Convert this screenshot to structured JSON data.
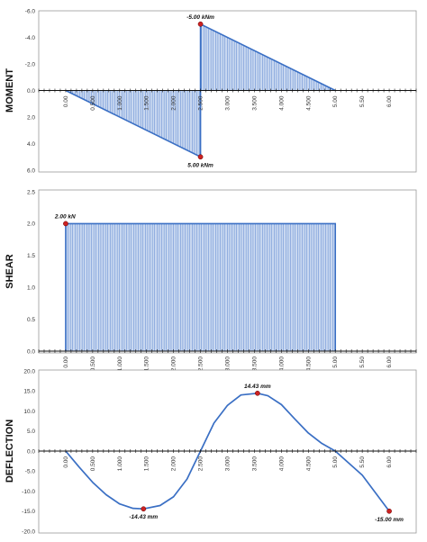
{
  "colors": {
    "series": "#3a6fc4",
    "fill": "#c9d8f0",
    "hatch": "#5b86cf",
    "marker": "#cc2222",
    "border": "#9a9a9a",
    "axis": "#111111"
  },
  "chart_data": [
    {
      "id": "moment",
      "type": "area",
      "ylabel": "MOMENT",
      "ylim": [
        6.0,
        -6.0
      ],
      "y_inverted": true,
      "yticks": [
        "-6.0",
        "-4.0",
        "-2.0",
        "0.0",
        "2.0",
        "4.0",
        "6.0"
      ],
      "ytick_values": [
        -6,
        -4,
        -2,
        0,
        2,
        4,
        6
      ],
      "xlim": [
        -0.5,
        6.5
      ],
      "xticks": [
        "0.00",
        "0.500",
        "1.000",
        "1.500",
        "2.000",
        "2.500",
        "3.000",
        "3.500",
        "4.000",
        "4.500",
        "5.00",
        "5.50",
        "6.00"
      ],
      "xtick_values": [
        0,
        0.5,
        1,
        1.5,
        2,
        2.5,
        3,
        3.5,
        4,
        4.5,
        5,
        5.5,
        6
      ],
      "points": [
        [
          0,
          0
        ],
        [
          2.5,
          5.0
        ],
        [
          2.5,
          -5.0
        ],
        [
          5.0,
          0
        ]
      ],
      "fill_range": [
        0,
        5
      ],
      "annotations": [
        {
          "x": 2.5,
          "y": -5.0,
          "text": "-5.00 kNm",
          "pos": "above"
        },
        {
          "x": 2.5,
          "y": 5.0,
          "text": "5.00 kNm",
          "pos": "below"
        }
      ],
      "grid": false
    },
    {
      "id": "shear",
      "type": "area",
      "ylabel": "SHEAR",
      "ylim": [
        0.0,
        2.5
      ],
      "yticks": [
        "0.0",
        "0.5",
        "1.0",
        "1.5",
        "2.0",
        "2.5"
      ],
      "ytick_values": [
        0,
        0.5,
        1.0,
        1.5,
        2.0,
        2.5
      ],
      "xlim": [
        -0.5,
        6.5
      ],
      "xticks": [
        "0.00",
        "0.500",
        "1.000",
        "1.500",
        "2.000",
        "2.500",
        "3.000",
        "3.500",
        "4.000",
        "4.500",
        "5.00",
        "5.50",
        "6.00"
      ],
      "xtick_values": [
        0,
        0.5,
        1,
        1.5,
        2,
        2.5,
        3,
        3.5,
        4,
        4.5,
        5,
        5.5,
        6
      ],
      "points": [
        [
          0,
          0
        ],
        [
          0,
          2.0
        ],
        [
          5.0,
          2.0
        ],
        [
          5.0,
          0
        ]
      ],
      "fill_range": [
        0,
        5
      ],
      "annotations": [
        {
          "x": 0,
          "y": 2.0,
          "text": "2.00 kN",
          "pos": "above-right"
        }
      ],
      "grid": false
    },
    {
      "id": "deflection",
      "type": "line",
      "ylabel": "DEFLECTION",
      "ylim": [
        -20.0,
        20.0
      ],
      "yticks": [
        "20.0",
        "15.0",
        "10.0",
        "5.0",
        "0.0",
        "-5.0",
        "-10.0",
        "-15.0",
        "-20.0"
      ],
      "ytick_values": [
        20,
        15,
        10,
        5,
        0,
        -5,
        -10,
        -15,
        -20
      ],
      "xlim": [
        -0.5,
        6.5
      ],
      "xticks": [
        "0.00",
        "0.500",
        "1.000",
        "1.500",
        "2.000",
        "2.500",
        "3.000",
        "3.500",
        "4.000",
        "4.500",
        "5.00",
        "5.50",
        "6.00"
      ],
      "xtick_values": [
        0,
        0.5,
        1,
        1.5,
        2,
        2.5,
        3,
        3.5,
        4,
        4.5,
        5,
        5.5,
        6
      ],
      "x": [
        0,
        0.25,
        0.5,
        0.75,
        1.0,
        1.25,
        1.443,
        1.75,
        2.0,
        2.25,
        2.5,
        2.75,
        3.0,
        3.25,
        3.557,
        3.75,
        4.0,
        4.25,
        4.5,
        4.75,
        5.0,
        5.25,
        5.5,
        5.75,
        6.0
      ],
      "y": [
        0,
        -4.0,
        -7.8,
        -10.9,
        -13.2,
        -14.3,
        -14.43,
        -13.6,
        -11.4,
        -7.0,
        0,
        7.0,
        11.4,
        14.0,
        14.43,
        13.8,
        11.6,
        8.0,
        4.5,
        1.9,
        0,
        -3.0,
        -6.0,
        -10.5,
        -15.0
      ],
      "annotations": [
        {
          "x": 1.443,
          "y": -14.43,
          "text": "-14.43 mm",
          "pos": "below"
        },
        {
          "x": 3.557,
          "y": 14.43,
          "text": "14.43 mm",
          "pos": "above"
        },
        {
          "x": 6.0,
          "y": -15.0,
          "text": "-15.00 mm",
          "pos": "below"
        }
      ],
      "grid": false
    }
  ]
}
